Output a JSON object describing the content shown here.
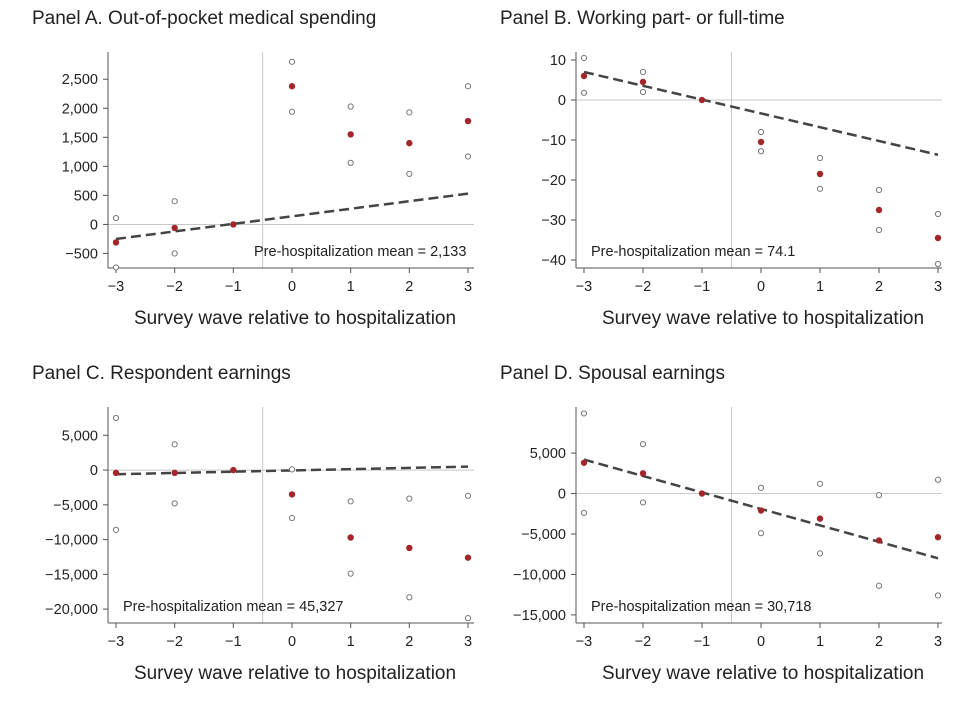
{
  "chart_data": [
    {
      "type": "scatter",
      "title": "Panel A. Out-of-pocket medical spending",
      "xlabel": "Survey wave relative to hospitalization",
      "ylabel": "",
      "x": [
        -3,
        -2,
        -1,
        0,
        1,
        2,
        3
      ],
      "xticks": [
        "−3",
        "−2",
        "−1",
        "0",
        "1",
        "2",
        "3"
      ],
      "ylim": [
        -750,
        2900
      ],
      "yticks": [
        -500,
        0,
        500,
        1000,
        1500,
        2000,
        2500
      ],
      "ytick_labels": [
        "−500",
        "0",
        "500",
        "1,000",
        "1,500",
        "2,000",
        "2,500"
      ],
      "series": [
        {
          "name": "Estimate",
          "values": [
            -310,
            -60,
            0,
            2380,
            1550,
            1400,
            1780
          ]
        },
        {
          "name": "CI upper",
          "values": [
            110,
            400,
            null,
            2800,
            2030,
            1930,
            2380
          ]
        },
        {
          "name": "CI lower",
          "values": [
            -740,
            -500,
            null,
            1940,
            1060,
            870,
            1170
          ]
        }
      ],
      "trend": {
        "x": [
          -3,
          3
        ],
        "y": [
          -250,
          530
        ]
      },
      "event_line_x": -0.5,
      "annotation": "Pre-hospitalization mean = 2,133"
    },
    {
      "type": "scatter",
      "title": "Panel B. Working part- or full-time",
      "xlabel": "Survey wave relative to hospitalization",
      "ylabel": "",
      "x": [
        -3,
        -2,
        -1,
        0,
        1,
        2,
        3
      ],
      "xticks": [
        "−3",
        "−2",
        "−1",
        "0",
        "1",
        "2",
        "3"
      ],
      "ylim": [
        -42,
        11
      ],
      "yticks": [
        -40,
        -30,
        -20,
        -10,
        0,
        10
      ],
      "ytick_labels": [
        "−40",
        "−30",
        "−20",
        "−10",
        "0",
        "10"
      ],
      "series": [
        {
          "name": "Estimate",
          "values": [
            6,
            4.5,
            0,
            -10.5,
            -18.5,
            -27.5,
            -34.5
          ]
        },
        {
          "name": "CI upper",
          "values": [
            10.5,
            7,
            null,
            -8,
            -14.5,
            -22.5,
            -28.5
          ]
        },
        {
          "name": "CI lower",
          "values": [
            1.8,
            2,
            null,
            -12.8,
            -22.2,
            -32.5,
            -41
          ]
        }
      ],
      "trend": {
        "x": [
          -3,
          3
        ],
        "y": [
          7,
          -13.7
        ]
      },
      "event_line_x": -0.5,
      "annotation": "Pre-hospitalization mean = 74.1"
    },
    {
      "type": "scatter",
      "title": "Panel C. Respondent earnings",
      "xlabel": "Survey wave relative to hospitalization",
      "ylabel": "",
      "x": [
        -3,
        -2,
        -1,
        0,
        1,
        2,
        3
      ],
      "xticks": [
        "−3",
        "−2",
        "−1",
        "0",
        "1",
        "2",
        "3"
      ],
      "ylim": [
        -22000,
        8500
      ],
      "yticks": [
        -20000,
        -15000,
        -10000,
        -5000,
        0,
        5000
      ],
      "ytick_labels": [
        "−20,000",
        "−15,000",
        "−10,000",
        "−5,000",
        "0",
        "5,000"
      ],
      "series": [
        {
          "name": "Estimate",
          "values": [
            -400,
            -400,
            0,
            -3500,
            -9700,
            -11200,
            -12600
          ]
        },
        {
          "name": "CI upper",
          "values": [
            7500,
            3700,
            null,
            100,
            -4500,
            -4100,
            -3700
          ]
        },
        {
          "name": "CI lower",
          "values": [
            -8600,
            -4800,
            null,
            -6900,
            -14900,
            -18300,
            -21300
          ]
        }
      ],
      "trend": {
        "x": [
          -3,
          3
        ],
        "y": [
          -600,
          500
        ]
      },
      "event_line_x": -0.5,
      "annotation": "Pre-hospitalization mean = 45,327"
    },
    {
      "type": "scatter",
      "title": "Panel D. Spousal earnings",
      "xlabel": "Survey wave relative to hospitalization",
      "ylabel": "",
      "x": [
        -3,
        -2,
        -1,
        0,
        1,
        2,
        3
      ],
      "xticks": [
        "−3",
        "−2",
        "−1",
        "0",
        "1",
        "2",
        "3"
      ],
      "ylim": [
        -16000,
        10200
      ],
      "yticks": [
        -15000,
        -10000,
        -5000,
        0,
        5000
      ],
      "ytick_labels": [
        "−15,000",
        "−10,000",
        "−5,000",
        "0",
        "5,000"
      ],
      "series": [
        {
          "name": "Estimate",
          "values": [
            3800,
            2500,
            0,
            -2100,
            -3100,
            -5800,
            -5400
          ]
        },
        {
          "name": "CI upper",
          "values": [
            9900,
            6100,
            null,
            700,
            1200,
            -200,
            1700
          ]
        },
        {
          "name": "CI lower",
          "values": [
            -2400,
            -1100,
            null,
            -4900,
            -7400,
            -11400,
            -12600
          ]
        }
      ],
      "trend": {
        "x": [
          -3,
          3
        ],
        "y": [
          4200,
          -8000
        ]
      },
      "event_line_x": -0.5,
      "annotation": "Pre-hospitalization mean = 30,718"
    }
  ],
  "colors": {
    "estimate": "#a3262a",
    "ci": "#777777",
    "trend": "#444444",
    "axis": "#555555",
    "refline": "#c8c8c8"
  }
}
